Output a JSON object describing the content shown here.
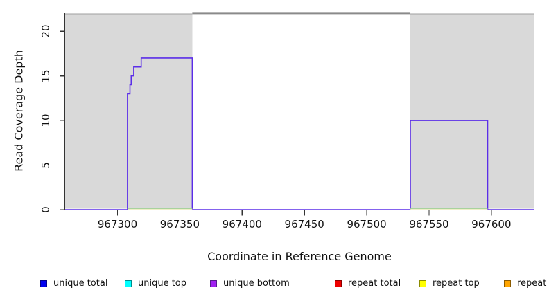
{
  "chart_data": {
    "type": "line",
    "subtype": "step",
    "title": "",
    "xlabel": "Coordinate in Reference Genome",
    "ylabel": "Read Coverage Depth",
    "xlim": [
      967258,
      967634
    ],
    "ylim": [
      0,
      22
    ],
    "x_ticks": [
      "967300",
      "967350",
      "967400",
      "967450",
      "967500",
      "967550",
      "967600"
    ],
    "x_tick_values": [
      967300,
      967350,
      967400,
      967450,
      967500,
      967550,
      967600
    ],
    "y_ticks": [
      "0",
      "5",
      "10",
      "15",
      "20"
    ],
    "y_tick_values": [
      0,
      5,
      10,
      15,
      20
    ],
    "grid": false,
    "background_color": "#ffffff",
    "shaded_regions": [
      {
        "name": "left-gray-region",
        "from": 967258,
        "to": 967360,
        "fill": "#d9d9d9",
        "top_border": "#b2b2b2"
      },
      {
        "name": "right-gray-region",
        "from": 967535,
        "to": 967634,
        "fill": "#d9d9d9",
        "top_border": "#b2b2b2"
      }
    ],
    "top_boundary_line": {
      "value": 22,
      "from": 967360,
      "to": 967535,
      "color": "#8a8a8a"
    },
    "series": [
      {
        "name": "unique bottom",
        "color": "#5b2ee8",
        "style": "step",
        "points": [
          [
            967258,
            0
          ],
          [
            967308,
            0
          ],
          [
            967308,
            13
          ],
          [
            967310,
            13
          ],
          [
            967310,
            14
          ],
          [
            967311,
            14
          ],
          [
            967311,
            15
          ],
          [
            967313,
            15
          ],
          [
            967313,
            16
          ],
          [
            967319,
            16
          ],
          [
            967319,
            17
          ],
          [
            967360,
            17
          ],
          [
            967360,
            0
          ],
          [
            967535,
            0
          ],
          [
            967535,
            10
          ],
          [
            967597,
            10
          ],
          [
            967597,
            0
          ],
          [
            967634,
            0
          ]
        ]
      },
      {
        "name": "zero-line-green",
        "color": "#7cbe7c",
        "style": "baseline-segments",
        "value": 0,
        "segments": [
          [
            967308,
            967360
          ],
          [
            967535,
            967597
          ]
        ]
      },
      {
        "name": "zero-line-yellow",
        "color": "#ededc0",
        "style": "baseline-segments",
        "value": 0,
        "segments": [
          [
            967308,
            967360
          ],
          [
            967535,
            967597
          ]
        ]
      }
    ],
    "legend": {
      "position": "bottom",
      "entries": [
        {
          "label": "unique total",
          "fill": "#0000ee",
          "border": "#00008b"
        },
        {
          "label": "unique top",
          "fill": "#00ffff",
          "border": "#008b8b"
        },
        {
          "label": "unique bottom",
          "fill": "#a020f0",
          "border": "#551a8b"
        },
        {
          "label": "repeat total",
          "fill": "#ee0000",
          "border": "#8b0000"
        },
        {
          "label": "repeat top",
          "fill": "#ffff00",
          "border": "#8b8b00"
        },
        {
          "label": "repeat bottom",
          "fill": "#ffa500",
          "border": "#8b5a00"
        }
      ]
    },
    "axis_color": "#333333"
  }
}
